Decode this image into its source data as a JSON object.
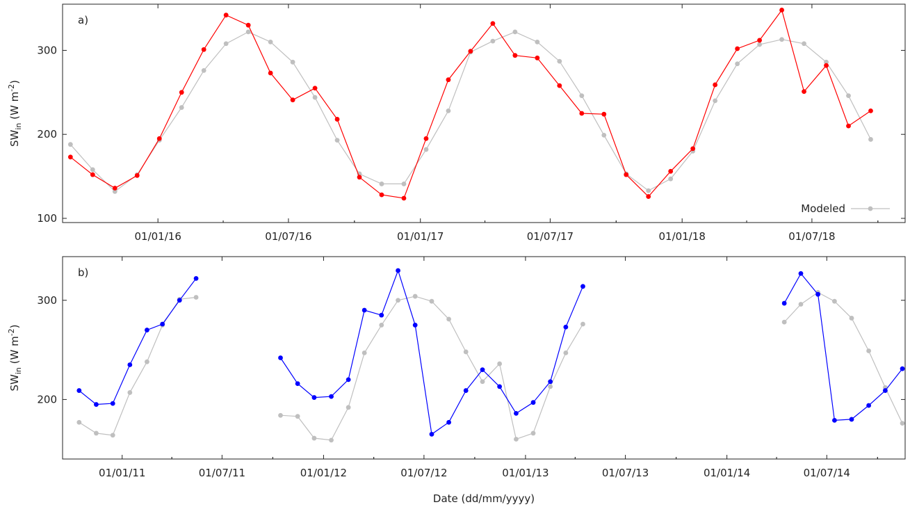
{
  "colors": {
    "observed_a": "#ff0000",
    "observed_b": "#0000ff",
    "modeled": "#bfbfbf",
    "axis": "#222222"
  },
  "legend": {
    "modeled_label": "Modeled",
    "placement": "bottom-right"
  },
  "common_xlabel": "Date (dd/mm/yyyy)",
  "chart_data": [
    {
      "type": "line",
      "panel_label": "a)",
      "ylabel": "SW_in (W m^-2)",
      "ylabel_main": "SW",
      "ylabel_sub": "in",
      "ylabel_unit": " (W m",
      "ylabel_sup": "-2",
      "ylabel_end": ")",
      "xlim": [
        "2015-08-21",
        "2018-11-08"
      ],
      "ylim": [
        95,
        355
      ],
      "yticks": [
        100,
        200,
        300
      ],
      "xticks": [
        "2016-01-01",
        "2016-07-01",
        "2017-01-01",
        "2017-07-01",
        "2018-01-01",
        "2018-07-01"
      ],
      "xtick_labels": [
        "01/01/16",
        "01/07/16",
        "01/01/17",
        "01/07/17",
        "01/01/18",
        "01/07/18"
      ],
      "grid": false,
      "x": [
        "2015-09-01",
        "2015-10-02",
        "2015-11-02",
        "2015-12-03",
        "2016-01-03",
        "2016-02-03",
        "2016-03-05",
        "2016-04-05",
        "2016-05-06",
        "2016-06-06",
        "2016-07-07",
        "2016-08-07",
        "2016-09-07",
        "2016-10-08",
        "2016-11-08",
        "2016-12-09",
        "2017-01-09",
        "2017-02-09",
        "2017-03-12",
        "2017-04-12",
        "2017-05-13",
        "2017-06-13",
        "2017-07-14",
        "2017-08-14",
        "2017-09-14",
        "2017-10-15",
        "2017-11-15",
        "2017-12-16",
        "2018-01-16",
        "2018-02-16",
        "2018-03-19",
        "2018-04-19",
        "2018-05-20",
        "2018-06-20",
        "2018-07-21",
        "2018-08-21",
        "2018-09-21",
        "2018-10-22"
      ],
      "series": [
        {
          "role": "observed",
          "values": [
            173,
            152,
            136,
            151,
            195,
            250,
            301,
            342,
            330,
            273,
            241,
            255,
            218,
            149,
            128,
            124,
            195,
            265,
            299,
            332,
            294,
            291,
            258,
            225,
            224,
            152,
            126,
            156,
            183,
            259,
            302,
            312,
            348,
            251,
            282,
            210,
            228,
            null
          ]
        },
        {
          "name": "Modeled",
          "values": [
            188,
            158,
            132,
            152,
            193,
            232,
            276,
            308,
            322,
            310,
            286,
            244,
            193,
            153,
            141,
            141,
            182,
            228,
            298,
            311,
            322,
            310,
            287,
            246,
            199,
            153,
            133,
            147,
            180,
            240,
            284,
            307,
            313,
            308,
            286,
            246,
            194,
            null
          ]
        }
      ]
    },
    {
      "type": "line",
      "panel_label": "b)",
      "ylabel": "SW_in (W m^-2)",
      "ylabel_main": "SW",
      "ylabel_sub": "in",
      "ylabel_unit": " (W m",
      "ylabel_sup": "-2",
      "ylabel_end": ")",
      "xlim": [
        "2010-09-15",
        "2014-11-20"
      ],
      "ylim": [
        140,
        344
      ],
      "yticks": [
        200,
        300
      ],
      "xticks": [
        "2011-01-01",
        "2011-07-01",
        "2012-01-01",
        "2012-07-01",
        "2013-01-01",
        "2013-07-01",
        "2014-01-01",
        "2014-07-01"
      ],
      "xtick_labels": [
        "01/01/11",
        "01/07/11",
        "01/01/12",
        "01/07/12",
        "01/01/13",
        "01/07/13",
        "01/01/14",
        "01/07/14"
      ],
      "grid": false,
      "x": [
        "2010-10-15",
        "2010-11-15",
        "2010-12-15",
        "2011-01-15",
        "2011-02-15",
        "2011-03-15",
        "2011-04-15",
        "2011-05-15",
        null,
        "2011-10-15",
        "2011-11-15",
        "2011-12-15",
        "2012-01-15",
        "2012-02-15",
        "2012-03-15",
        "2012-04-15",
        "2012-05-15",
        "2012-06-15",
        "2012-07-15",
        "2012-08-15",
        "2012-09-15",
        "2012-10-15",
        "2012-11-15",
        "2012-12-15",
        "2013-01-15",
        "2013-02-15",
        "2013-03-15",
        "2013-04-15",
        null,
        "2014-04-15",
        "2014-05-15",
        "2014-06-15",
        "2014-07-15",
        "2014-08-15",
        "2014-09-15",
        "2014-10-15",
        "2014-11-15"
      ],
      "series": [
        {
          "role": "observed",
          "values": [
            209,
            195,
            196,
            235,
            270,
            276,
            300,
            322,
            null,
            242,
            216,
            202,
            203,
            220,
            290,
            285,
            330,
            275,
            165,
            177,
            209,
            230,
            213,
            186,
            197,
            218,
            273,
            314,
            null,
            297,
            327,
            306,
            179,
            180,
            194,
            209,
            231
          ]
        },
        {
          "name": "Modeled",
          "values": [
            177,
            166,
            164,
            207,
            238,
            275,
            301,
            303,
            null,
            184,
            183,
            161,
            159,
            192,
            247,
            275,
            300,
            304,
            299,
            281,
            248,
            218,
            236,
            160,
            166,
            213,
            247,
            276,
            null,
            278,
            296,
            308,
            299,
            282,
            249,
            212,
            176
          ]
        }
      ]
    }
  ]
}
